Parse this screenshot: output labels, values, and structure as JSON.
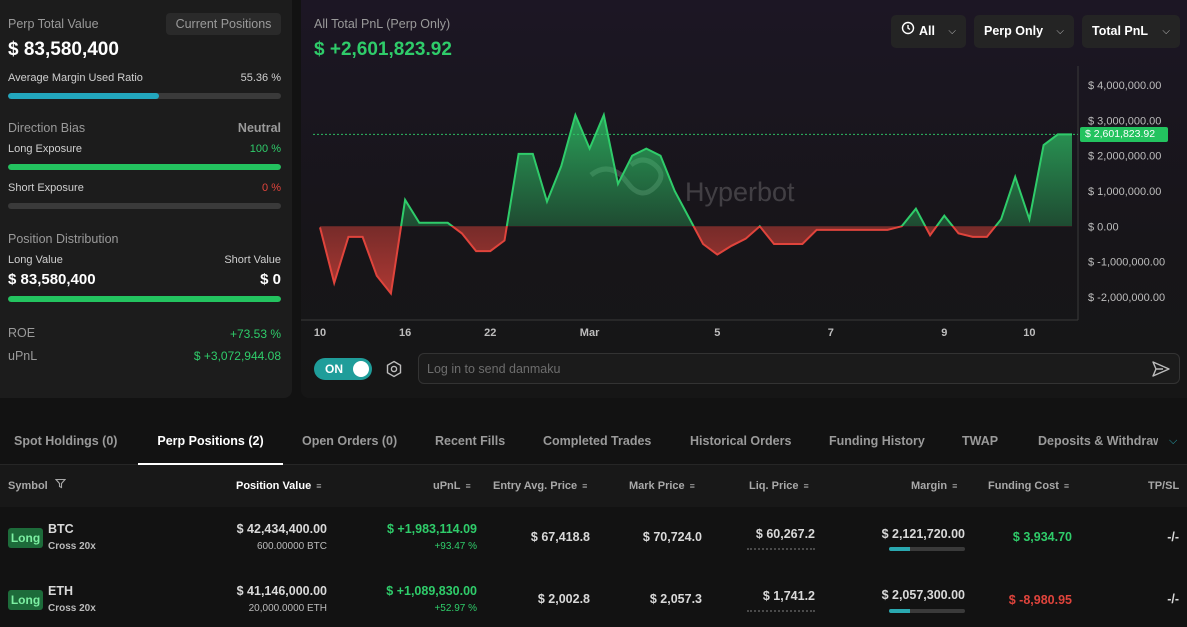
{
  "summary": {
    "perp_total_value_label": "Perp Total Value",
    "current_positions_button": "Current Positions",
    "perp_total_value": "$ 83,580,400",
    "avg_margin_label": "Average Margin Used Ratio",
    "avg_margin_value": "55.36 %",
    "avg_margin_fraction": 0.5536,
    "direction_bias_label": "Direction Bias",
    "direction_bias_value": "Neutral",
    "long_exposure_label": "Long Exposure",
    "long_exposure_value": "100 %",
    "long_exposure_fraction": 1.0,
    "short_exposure_label": "Short Exposure",
    "short_exposure_value": "0 %",
    "short_exposure_fraction": 0.0,
    "position_distribution_label": "Position Distribution",
    "long_value_label": "Long Value",
    "long_value": "$ 83,580,400",
    "short_value_label": "Short Value",
    "short_value": "$ 0",
    "long_share_fraction": 1.0,
    "roe_label": "ROE",
    "roe_value": "+73.53 %",
    "upnl_label": "uPnL",
    "upnl_value": "$ +3,072,944.08"
  },
  "chart_header": {
    "title": "All Total PnL (Perp Only)",
    "value": "$ +2,601,823.92",
    "filters": {
      "range": "All",
      "scope": "Perp Only",
      "metric": "Total PnL"
    },
    "watermark": "Hyperbot",
    "current_marker": "$ 2,601,823.92"
  },
  "chart_data": {
    "type": "area",
    "ylim": [
      -2000000,
      4000000
    ],
    "yticks": [
      {
        "v": 4000000,
        "label": "$ 4,000,000.00"
      },
      {
        "v": 3000000,
        "label": "$ 3,000,000.00"
      },
      {
        "v": 2000000,
        "label": "$ 2,000,000.00"
      },
      {
        "v": 1000000,
        "label": "$ 1,000,000.00"
      },
      {
        "v": 0,
        "label": "$ 0.00"
      },
      {
        "v": -1000000,
        "label": "$ -1,000,000.00"
      },
      {
        "v": -2000000,
        "label": "$ -2,000,000.00"
      }
    ],
    "xticks": [
      {
        "i": 0,
        "label": "10"
      },
      {
        "i": 6,
        "label": "16"
      },
      {
        "i": 12,
        "label": "22"
      },
      {
        "i": 19,
        "label": "Mar"
      },
      {
        "i": 28,
        "label": "5"
      },
      {
        "i": 36,
        "label": "7"
      },
      {
        "i": 44,
        "label": "9"
      },
      {
        "i": 50,
        "label": "10"
      }
    ],
    "values": [
      -30000,
      -1600000,
      -300000,
      -300000,
      -1400000,
      -1900000,
      750000,
      100000,
      100000,
      100000,
      -200000,
      -700000,
      -700000,
      -400000,
      2050000,
      2050000,
      700000,
      1700000,
      3150000,
      2200000,
      3150000,
      1200000,
      2000000,
      2200000,
      2000000,
      1000000,
      250000,
      -500000,
      -800000,
      -550000,
      -350000,
      0,
      -500000,
      -500000,
      -500000,
      -100000,
      -100000,
      -100000,
      -100000,
      -100000,
      -100000,
      0,
      500000,
      -250000,
      300000,
      -200000,
      -300000,
      -300000,
      200000,
      1400000,
      200000,
      2300000,
      2601823.92,
      2601823.92
    ],
    "current": 2601823.92
  },
  "controls": {
    "toggle_label": "ON",
    "danmaku_placeholder": "Log in to send danmaku"
  },
  "tabs": [
    {
      "label": "Spot Holdings (0)"
    },
    {
      "label": "Perp Positions (2)"
    },
    {
      "label": "Open Orders (0)"
    },
    {
      "label": "Recent Fills"
    },
    {
      "label": "Completed Trades"
    },
    {
      "label": "Historical Orders"
    },
    {
      "label": "Funding History"
    },
    {
      "label": "TWAP"
    },
    {
      "label": "Deposits & Withdraw"
    }
  ],
  "table": {
    "headers": {
      "symbol": "Symbol",
      "position_value": "Position Value",
      "upnl": "uPnL",
      "entry": "Entry Avg. Price",
      "mark": "Mark Price",
      "liq": "Liq. Price",
      "margin": "Margin",
      "funding": "Funding Cost",
      "tpsl": "TP/SL"
    },
    "rows": [
      {
        "side": "Long",
        "symbol": "BTC",
        "leverage": "Cross 20x",
        "position_value": "$ 42,434,400.00",
        "position_size": "600.00000 BTC",
        "upnl": "$ +1,983,114.09",
        "upnl_pct": "+93.47 %",
        "entry": "$ 67,418.8",
        "mark": "$ 70,724.0",
        "liq": "$ 60,267.2",
        "margin": "$ 2,121,720.00",
        "margin_fraction": 0.28,
        "funding": "$ 3,934.70",
        "funding_color": "#2fcc6a",
        "tpsl": "-/-"
      },
      {
        "side": "Long",
        "symbol": "ETH",
        "leverage": "Cross 20x",
        "position_value": "$ 41,146,000.00",
        "position_size": "20,000.0000 ETH",
        "upnl": "$ +1,089,830.00",
        "upnl_pct": "+52.97 %",
        "entry": "$ 2,002.8",
        "mark": "$ 2,057.3",
        "liq": "$ 1,741.2",
        "margin": "$ 2,057,300.00",
        "margin_fraction": 0.27,
        "funding": "$ -8,980.95",
        "funding_color": "#e0443c",
        "tpsl": "-/-"
      }
    ]
  }
}
